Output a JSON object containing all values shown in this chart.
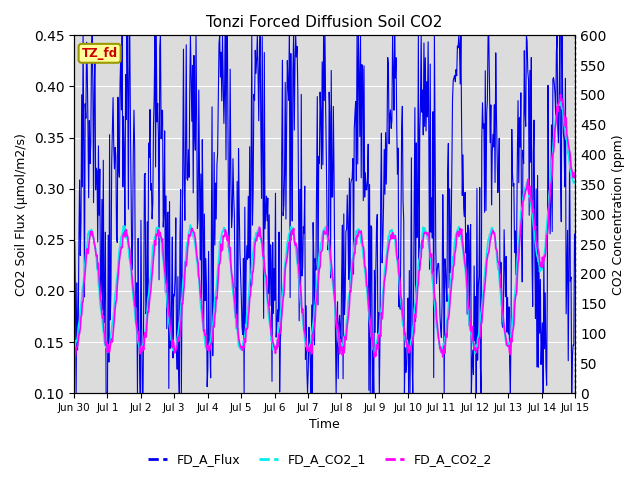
{
  "title": "Tonzi Forced Diffusion Soil CO2",
  "xlabel": "Time",
  "ylabel_left": "CO2 Soil Flux (μmol/m2/s)",
  "ylabel_right": "CO2 Concentration (ppm)",
  "ylim_left": [
    0.1,
    0.45
  ],
  "ylim_right": [
    0,
    600
  ],
  "yticks_left": [
    0.1,
    0.15,
    0.2,
    0.25,
    0.3,
    0.35,
    0.4,
    0.45
  ],
  "yticks_right": [
    0,
    50,
    100,
    150,
    200,
    250,
    300,
    350,
    400,
    450,
    500,
    550,
    600
  ],
  "flux_color": "#0000EE",
  "co2_1_color": "#00EEEE",
  "co2_2_color": "#FF00FF",
  "flux_linewidth": 0.8,
  "co2_linewidth": 1.2,
  "background_color": "#DCDCDC",
  "legend_labels": [
    "FD_A_Flux",
    "FD_A_CO2_1",
    "FD_A_CO2_2"
  ],
  "tag_text": "TZ_fd",
  "tag_bg": "#FFFF99",
  "tag_border": "#999900",
  "tag_text_color": "#CC0000",
  "grid_color": "#FFFFFF",
  "n_days": 15,
  "pts_per_day": 48,
  "seed": 42
}
